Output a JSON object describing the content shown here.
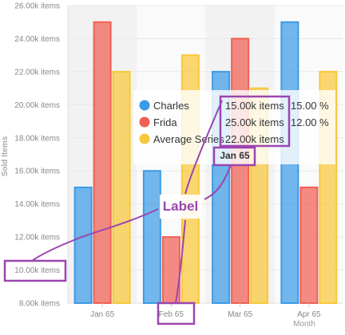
{
  "chart_data": {
    "type": "bar",
    "categories": [
      "Jan 65",
      "Feb 65",
      "Mar 65",
      "Apr 65"
    ],
    "series": [
      {
        "name": "Charles",
        "values": [
          15000,
          16000,
          22000,
          25000
        ],
        "color": "#3c9be6"
      },
      {
        "name": "Frida",
        "values": [
          25000,
          12000,
          24000,
          15000
        ],
        "color": "#f06054"
      },
      {
        "name": "Average Series",
        "values": [
          22000,
          23000,
          21000,
          22000
        ],
        "color": "#f8c83a"
      }
    ],
    "xlabel": "Month",
    "ylabel": "Sold Items",
    "ylim": [
      8000,
      26000
    ],
    "yticks": [
      "8.00k items",
      "10.00k items",
      "12.00k items",
      "14.00k items",
      "16.00k items",
      "18.00k items",
      "20.00k items",
      "22.00k items",
      "24.00k items",
      "26.00k items"
    ],
    "grid": true,
    "tooltip": {
      "title": "Jan 65",
      "rows": [
        {
          "series": "Charles",
          "value": "15.00k items",
          "percent": "15.00 %"
        },
        {
          "series": "Frida",
          "value": "25.00k items",
          "percent": "12.00 %"
        },
        {
          "series": "Average Series",
          "value": "22.00k items",
          "percent": ""
        }
      ]
    },
    "annotation": {
      "label": "Label",
      "targets": [
        "10.00k items",
        "Feb 65",
        "15.00k items",
        "Jan 65"
      ]
    }
  }
}
